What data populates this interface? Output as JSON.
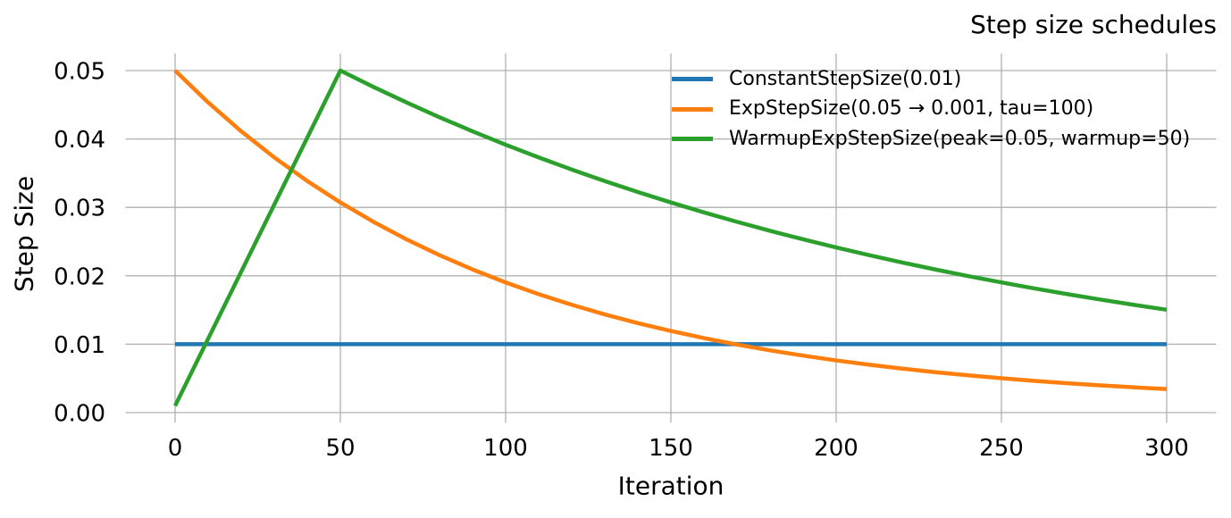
{
  "figure": {
    "background": "#ffffff",
    "text_color": "#000000"
  },
  "chart_data": {
    "type": "line",
    "title": "Step size schedules",
    "xlabel": "Iteration",
    "ylabel": "Step Size",
    "xlim": [
      -15,
      315
    ],
    "ylim": [
      -0.00145,
      0.0525
    ],
    "xticks": [
      0,
      50,
      100,
      150,
      200,
      250,
      300
    ],
    "xtick_labels": [
      "0",
      "50",
      "100",
      "150",
      "200",
      "250",
      "300"
    ],
    "yticks": [
      0,
      0.01,
      0.02,
      0.03,
      0.04,
      0.05
    ],
    "ytick_labels": [
      "0.00",
      "0.01",
      "0.02",
      "0.03",
      "0.04",
      "0.05"
    ],
    "grid": true,
    "grid_color": "#b0b0b0",
    "line_width": 4.5,
    "legend": {
      "position": "upper-right-inside",
      "frame": false
    },
    "series": [
      {
        "name": "ConstantStepSize(0.01)",
        "color": "#1f77b4",
        "x": [
          0,
          300
        ],
        "y": [
          0.01,
          0.01
        ]
      },
      {
        "name": "ExpStepSize(0.05 → 0.001, tau=100)",
        "color": "#ff7f0e",
        "x": [
          0,
          10,
          20,
          30,
          40,
          50,
          60,
          70,
          80,
          90,
          100,
          110,
          120,
          130,
          140,
          150,
          160,
          170,
          180,
          190,
          200,
          210,
          220,
          230,
          240,
          250,
          260,
          270,
          280,
          290,
          300
        ],
        "y": [
          0.05,
          0.04534,
          0.04112,
          0.0373,
          0.03385,
          0.03072,
          0.02789,
          0.02533,
          0.02302,
          0.02092,
          0.01903,
          0.01731,
          0.01576,
          0.01435,
          0.01308,
          0.01193,
          0.01089,
          0.00995,
          0.0091,
          0.00833,
          0.00763,
          0.007,
          0.00643,
          0.00591,
          0.00545,
          0.00502,
          0.00464,
          0.00429,
          0.00398,
          0.0037,
          0.00344
        ]
      },
      {
        "name": "WarmupExpStepSize(peak=0.05, warmup=50)",
        "color": "#2ca02c",
        "x": [
          0,
          50,
          60,
          70,
          80,
          90,
          100,
          110,
          120,
          130,
          140,
          150,
          160,
          170,
          180,
          190,
          200,
          210,
          220,
          230,
          240,
          250,
          260,
          270,
          280,
          290,
          300
        ],
        "y": [
          0.001,
          0.05,
          0.04761,
          0.04534,
          0.04317,
          0.04112,
          0.03916,
          0.0373,
          0.03553,
          0.03385,
          0.03224,
          0.03072,
          0.02927,
          0.02789,
          0.02658,
          0.02533,
          0.02415,
          0.02302,
          0.02194,
          0.02092,
          0.01995,
          0.01903,
          0.01815,
          0.01731,
          0.01652,
          0.01576,
          0.01504
        ]
      }
    ]
  }
}
